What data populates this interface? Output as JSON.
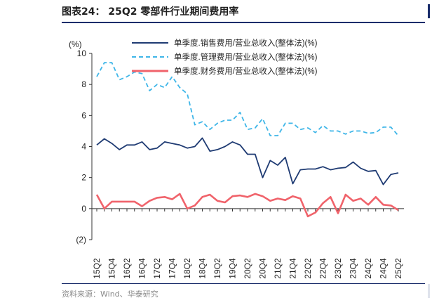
{
  "header": {
    "title": "图表24： 25Q2 零部件行业期间费用率"
  },
  "footer": {
    "source": "资料来源：Wind、华泰研究"
  },
  "chart_data": {
    "type": "line",
    "title": "图表24： 25Q2 零部件行业期间费用率",
    "ylabel": "(%)",
    "ylim": [
      -2,
      10
    ],
    "yticks": [
      -2,
      0,
      2,
      4,
      6,
      8,
      10
    ],
    "ytick_labels": [
      "(2)",
      "0",
      "2",
      "4",
      "6",
      "8",
      "10"
    ],
    "legend_position": "top",
    "x": [
      "15Q2",
      "15Q3",
      "15Q4",
      "16Q1",
      "16Q2",
      "16Q3",
      "16Q4",
      "17Q1",
      "17Q2",
      "17Q3",
      "17Q4",
      "18Q1",
      "18Q2",
      "18Q3",
      "18Q4",
      "19Q1",
      "19Q2",
      "19Q3",
      "19Q4",
      "20Q1",
      "20Q2",
      "20Q3",
      "20Q4",
      "21Q1",
      "21Q2",
      "21Q3",
      "21Q4",
      "22Q1",
      "22Q2",
      "22Q3",
      "22Q4",
      "23Q1",
      "23Q2",
      "23Q3",
      "23Q4",
      "24Q1",
      "24Q2",
      "24Q3",
      "24Q4",
      "25Q1",
      "25Q2"
    ],
    "xtick_labels": [
      "15Q2",
      "15Q4",
      "16Q2",
      "16Q4",
      "17Q2",
      "17Q4",
      "18Q2",
      "18Q4",
      "19Q2",
      "19Q4",
      "20Q2",
      "20Q4",
      "21Q2",
      "21Q4",
      "22Q2",
      "22Q4",
      "23Q2",
      "23Q4",
      "24Q2",
      "24Q4",
      "25Q2"
    ],
    "series": [
      {
        "name": "单季度.销售费用/营业总收入(整体法)(%)",
        "color": "#1f3b73",
        "style": "solid",
        "values": [
          4.1,
          4.5,
          4.2,
          3.8,
          4.1,
          4.1,
          4.3,
          3.8,
          3.9,
          4.3,
          4.2,
          4.1,
          3.9,
          4.0,
          4.55,
          3.7,
          3.8,
          4.0,
          4.3,
          4.1,
          3.5,
          3.5,
          2.0,
          3.1,
          2.8,
          3.3,
          1.6,
          2.5,
          2.55,
          2.55,
          2.7,
          2.5,
          2.6,
          2.65,
          3.0,
          2.6,
          2.4,
          2.45,
          1.55,
          2.2,
          2.3
        ]
      },
      {
        "name": "单季度.管理费用/营业总收入(整体法)(%)",
        "color": "#3fb6e8",
        "style": "dashed",
        "values": [
          8.5,
          9.4,
          9.4,
          8.3,
          8.5,
          8.8,
          8.7,
          7.6,
          8.0,
          7.8,
          8.5,
          7.8,
          7.4,
          5.4,
          5.6,
          5.1,
          5.5,
          5.7,
          5.7,
          6.2,
          5.1,
          5.2,
          5.8,
          4.7,
          4.7,
          5.5,
          5.5,
          5.1,
          5.2,
          4.9,
          5.35,
          5.0,
          5.0,
          4.8,
          5.0,
          5.0,
          4.85,
          4.9,
          5.25,
          5.25,
          4.7
        ]
      },
      {
        "name": "单季度.财务费用/营业总收入(整体法)(%)",
        "color": "#f0636b",
        "style": "solid",
        "values": [
          0.9,
          0.0,
          0.45,
          0.45,
          0.45,
          0.45,
          0.15,
          0.5,
          0.7,
          0.75,
          0.6,
          0.95,
          0.0,
          0.2,
          0.75,
          0.9,
          0.5,
          0.4,
          0.8,
          0.85,
          0.75,
          0.95,
          0.8,
          0.5,
          0.65,
          0.55,
          0.8,
          0.65,
          -0.5,
          -0.25,
          0.35,
          0.75,
          -0.3,
          0.9,
          0.5,
          0.65,
          0.25,
          0.75,
          0.25,
          0.2,
          -0.1
        ]
      }
    ]
  }
}
